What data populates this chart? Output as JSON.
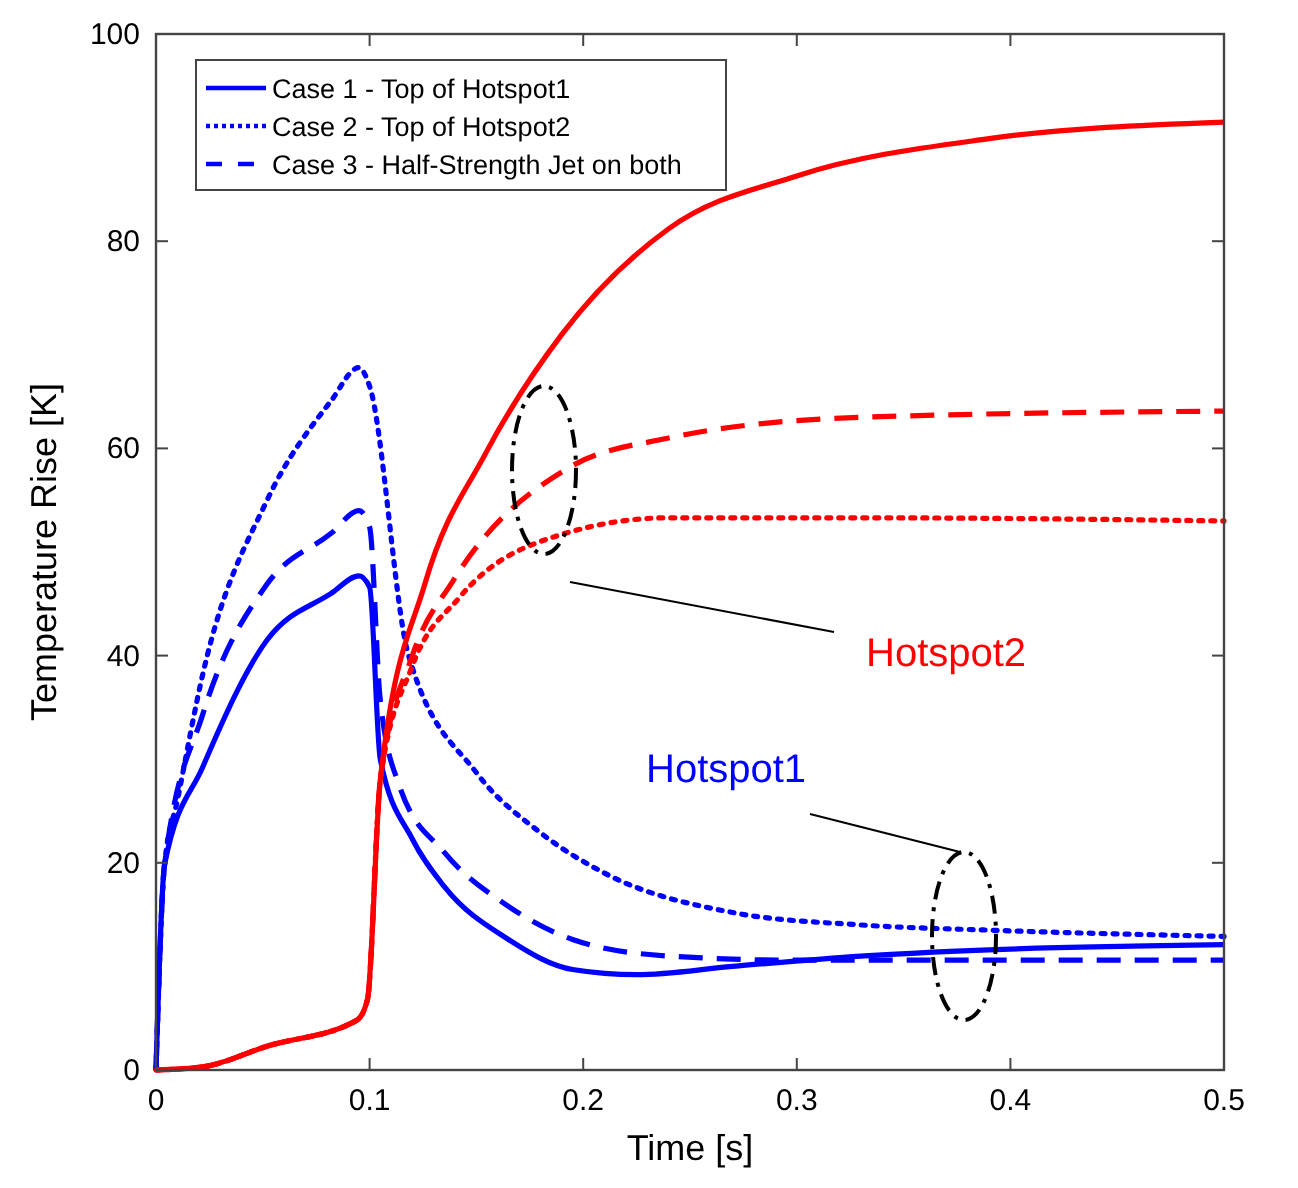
{
  "chart_data": {
    "type": "line",
    "xlabel": "Time [s]",
    "ylabel": "Temperature Rise [K]",
    "xlim": [
      0,
      0.5
    ],
    "ylim": [
      0,
      100
    ],
    "xticks": [
      0,
      0.1,
      0.2,
      0.3,
      0.4,
      0.5
    ],
    "yticks": [
      0,
      20,
      40,
      60,
      80,
      100
    ],
    "grid": false,
    "legend": "top left",
    "series": [
      {
        "name": "Case 1 - Top of Hotspot1",
        "color": "#0000ff",
        "line_style": "solid",
        "x": [
          0,
          0.004,
          0.022,
          0.052,
          0.082,
          0.095,
          0.1,
          0.105,
          0.12,
          0.135,
          0.165,
          0.195,
          0.225,
          0.27,
          0.33,
          0.39,
          0.5
        ],
        "values": [
          0,
          19.8,
          29.3,
          41.5,
          46,
          47.7,
          46.6,
          30,
          22.3,
          17.7,
          12.6,
          9.7,
          9.2,
          10,
          11,
          11.6,
          12.1
        ]
      },
      {
        "name": "Case 2 - Top of Hotspot2",
        "color": "#0000ff",
        "line_style": "dotted",
        "x": [
          0,
          0.004,
          0.01,
          0.022,
          0.052,
          0.082,
          0.095,
          0.1,
          0.118,
          0.15,
          0.18,
          0.21,
          0.27,
          0.33,
          0.39,
          0.5
        ],
        "values": [
          0,
          19.8,
          26,
          38.3,
          55,
          64.6,
          67.8,
          66,
          40.2,
          28.7,
          22.9,
          19,
          15.2,
          14,
          13.5,
          12.9
        ]
      },
      {
        "name": "Case 3 - Half-Strength Jet on both",
        "color": "#0000ff",
        "line_style": "dashed",
        "x": [
          0,
          0.004,
          0.022,
          0.052,
          0.082,
          0.095,
          0.1,
          0.105,
          0.114,
          0.135,
          0.165,
          0.195,
          0.24,
          0.3,
          0.5
        ],
        "values": [
          0,
          19.8,
          34.4,
          46.9,
          51.8,
          54,
          52.4,
          35.7,
          27.4,
          21,
          15.8,
          12.6,
          11,
          10.6,
          10.6
        ]
      },
      {
        "color": "#ff0000",
        "line_style": "solid",
        "x": [
          0,
          0.022,
          0.052,
          0.094,
          0.099,
          0.105,
          0.126,
          0.154,
          0.19,
          0.24,
          0.3,
          0.39,
          0.5
        ],
        "values": [
          0,
          0.3,
          2.3,
          4.8,
          6.8,
          28,
          47,
          59.4,
          71,
          81.2,
          86.3,
          89.9,
          91.5
        ]
      },
      {
        "color": "#ff0000",
        "line_style": "dotted",
        "x": [
          0,
          0.022,
          0.052,
          0.094,
          0.099,
          0.105,
          0.12,
          0.142,
          0.19,
          0.24,
          0.33,
          0.5
        ],
        "values": [
          0,
          0.3,
          2.3,
          4.8,
          6.8,
          28,
          39,
          45.6,
          51.7,
          53.3,
          53.3,
          53
        ]
      },
      {
        "color": "#ff0000",
        "line_style": "dashed",
        "x": [
          0,
          0.022,
          0.052,
          0.094,
          0.099,
          0.105,
          0.12,
          0.139,
          0.193,
          0.24,
          0.33,
          0.5
        ],
        "values": [
          0,
          0.3,
          2.3,
          4.8,
          6.8,
          28,
          40,
          47.2,
          58.1,
          61,
          63,
          63.6
        ]
      }
    ],
    "annotations": [
      "Hotspot2",
      "Hotspot1"
    ]
  }
}
